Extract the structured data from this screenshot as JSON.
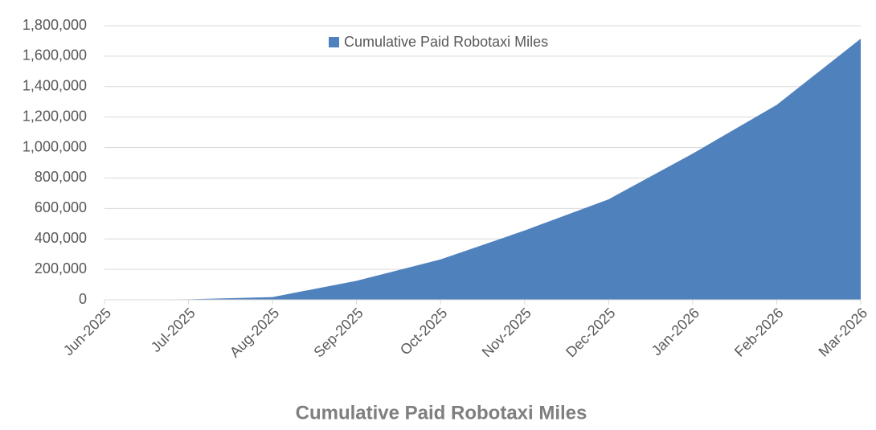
{
  "chart_data": {
    "type": "area",
    "title": "Cumulative Paid Robotaxi Miles",
    "categories": [
      "Jun-2025",
      "Jul-2025",
      "Aug-2025",
      "Sep-2025",
      "Oct-2025",
      "Nov-2025",
      "Dec-2025",
      "Jan-2026",
      "Feb-2026",
      "Mar-2026"
    ],
    "series": [
      {
        "name": "Cumulative Paid Robotaxi Miles",
        "color": "#4f81bd",
        "values": [
          0,
          3000,
          18000,
          125000,
          265000,
          455000,
          660000,
          960000,
          1280000,
          1715000
        ]
      }
    ],
    "ylim": [
      0,
      1800000
    ],
    "yticks": [
      0,
      {
        "value": 200000,
        "label": "200,000"
      },
      {
        "value": 400000,
        "label": "400,000"
      },
      {
        "value": 600000,
        "label": "600,000"
      },
      {
        "value": 800000,
        "label": "800,000"
      },
      {
        "value": 1000000,
        "label": "1,000,000"
      },
      {
        "value": 1200000,
        "label": "1,200,000"
      },
      {
        "value": 1400000,
        "label": "1,400,000"
      },
      {
        "value": 1600000,
        "label": "1,600,000"
      },
      {
        "value": 1800000,
        "label": "1,800,000"
      }
    ],
    "grid": true,
    "legend": "top"
  }
}
